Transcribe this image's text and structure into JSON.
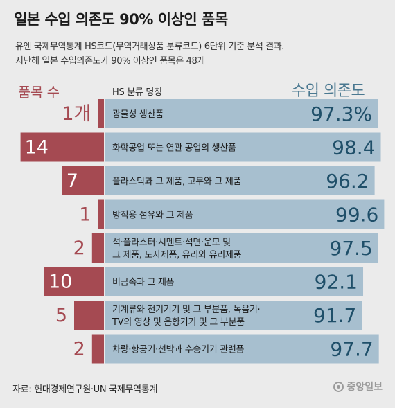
{
  "title": "일본 수입 의존도 90% 이상인 품목",
  "subtitle_lines": [
    "유엔 국제무역통계 HS코드(무역거래상품 분류코드) 6단위 기준 분석 결과.",
    "지난해 일본 수입의존도가 90% 이상인 품목은 48개"
  ],
  "headers": {
    "left": "품목 수",
    "middle": "HS 분류 명칭",
    "right": "수입 의존도"
  },
  "colors": {
    "count_bar": "#a54a52",
    "count_text_light": "#ffffff",
    "count_text_dark": "#a54a52",
    "dependency_bar": "#a7bfcf",
    "dependency_text": "#1f4f69",
    "background": "#ebebeb"
  },
  "chart_data": {
    "type": "bar",
    "categories": [
      [
        "광물성 생산품"
      ],
      [
        "화학공업 또는 연관 공업의 생산품"
      ],
      [
        "플라스틱과 그 제품, 고무와 그 제품"
      ],
      [
        "방직용 섬유와 그 제품"
      ],
      [
        "석·플라스터·시멘트·석면·운모 및",
        "그 제품, 도자제품, 유리와 유리제품"
      ],
      [
        "비금속과 그 제품"
      ],
      [
        "기계류와 전기기기 및 그 부분품, 녹음기·",
        "TV의 영상 및 음향기기 및 그 부분품"
      ],
      [
        "차량·항공기·선박과 수송기기 관련품"
      ]
    ],
    "series": [
      {
        "name": "품목 수",
        "values": [
          1,
          14,
          7,
          1,
          2,
          10,
          5,
          2
        ],
        "labels": [
          "1개",
          "14",
          "7",
          "1",
          "2",
          "10",
          "5",
          "2"
        ]
      },
      {
        "name": "수입 의존도",
        "values": [
          97.3,
          98.4,
          96.2,
          99.6,
          97.5,
          92.1,
          91.7,
          97.7
        ],
        "labels": [
          "97.3%",
          "98.4",
          "96.2",
          "99.6",
          "97.5",
          "92.1",
          "91.7",
          "97.7"
        ]
      }
    ]
  },
  "source": "자료: 현대경제연구원·UN 국제무역통계",
  "logo": "중앙일보"
}
